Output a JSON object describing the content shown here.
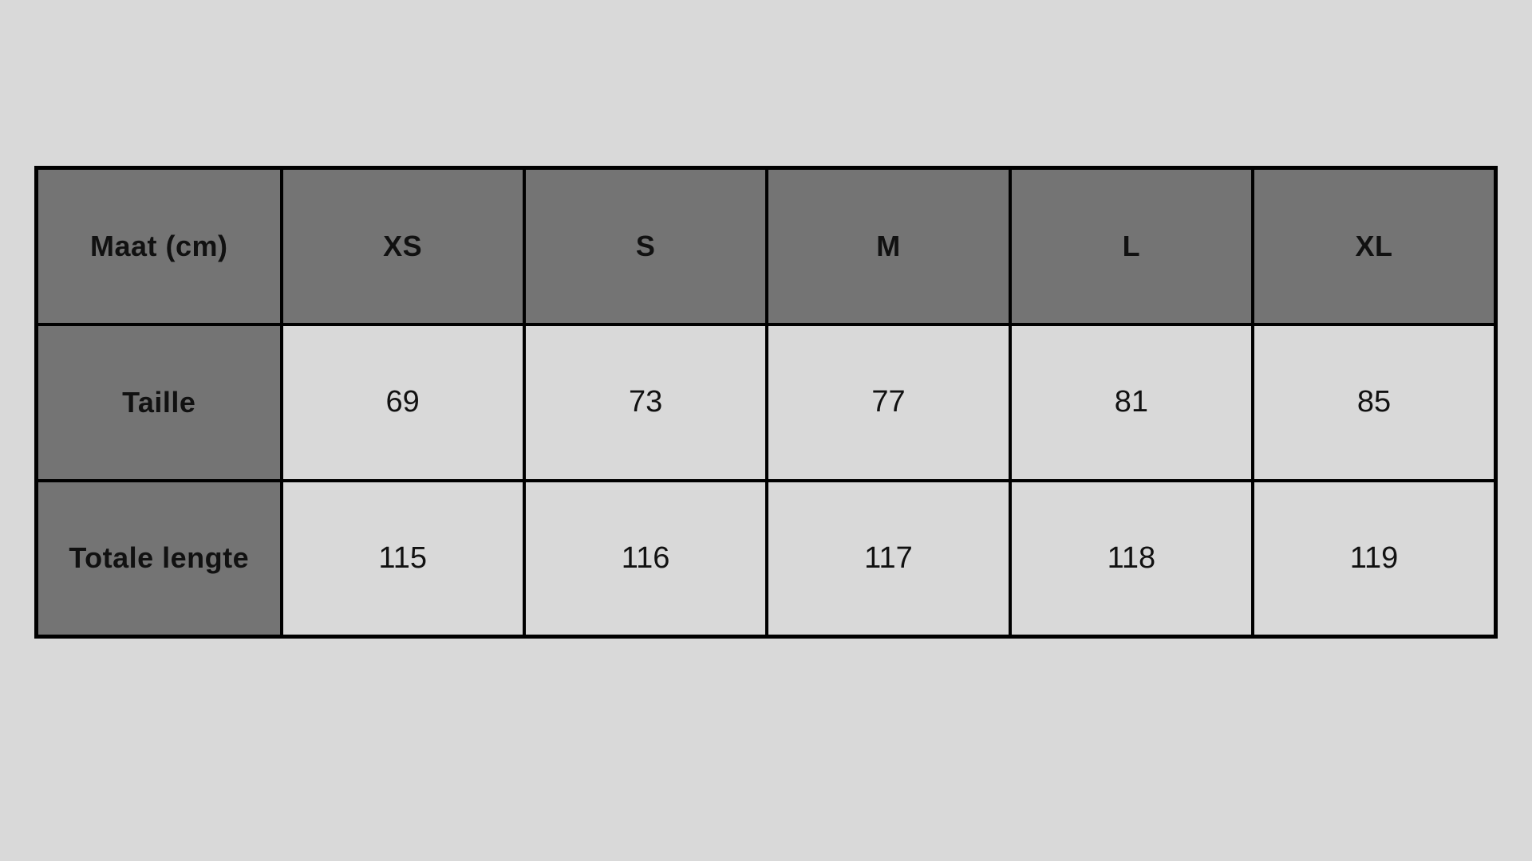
{
  "page": {
    "background_color": "#d9d9d9"
  },
  "size_table": {
    "corner_header": "Maat (cm)",
    "column_headers": [
      "XS",
      "S",
      "M",
      "L",
      "XL"
    ],
    "rows": [
      {
        "label": "Taille",
        "values": [
          "69",
          "73",
          "77",
          "81",
          "85"
        ]
      },
      {
        "label": "Totale lengte",
        "values": [
          "115",
          "116",
          "117",
          "118",
          "119"
        ]
      }
    ],
    "colors": {
      "header_bg": "#747474",
      "cell_bg": "#d9d9d9",
      "border": "#000000",
      "text": "#111111"
    }
  },
  "chart_data": {
    "type": "table",
    "title": "Maat (cm)",
    "columns": [
      "Maat (cm)",
      "XS",
      "S",
      "M",
      "L",
      "XL"
    ],
    "rows": [
      [
        "Taille",
        69,
        73,
        77,
        81,
        85
      ],
      [
        "Totale lengte",
        115,
        116,
        117,
        118,
        119
      ]
    ],
    "notes": "Size chart; all measurements in cm. Header row and first column have dark gray background; value cells light gray; black grid borders."
  }
}
